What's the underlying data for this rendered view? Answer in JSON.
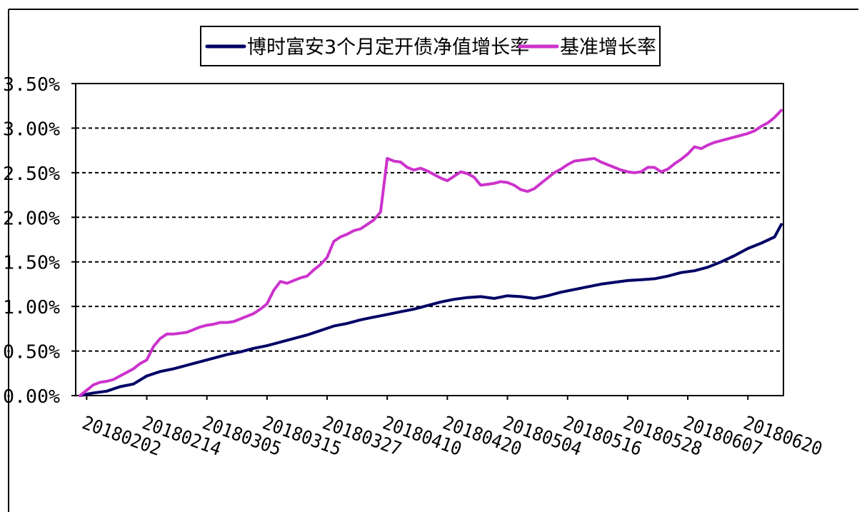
{
  "chart_data": {
    "type": "line",
    "title": "",
    "xlabel": "",
    "ylabel": "",
    "ylim": [
      0,
      0.035
    ],
    "y_ticks": [
      "0.00%",
      "0.50%",
      "1.00%",
      "1.50%",
      "2.00%",
      "2.50%",
      "3.00%",
      "3.50%"
    ],
    "y_tick_values": [
      0,
      0.005,
      0.01,
      0.015,
      0.02,
      0.025,
      0.03,
      0.035
    ],
    "x_tick_labels": [
      "20180202",
      "20180214",
      "20180305",
      "20180315",
      "20180327",
      "20180410",
      "20180420",
      "20180504",
      "20180516",
      "20180528",
      "20180607",
      "20180620"
    ],
    "x_tick_positions": [
      1,
      10,
      19,
      28,
      37,
      46,
      55,
      64,
      73,
      82,
      91,
      100
    ],
    "x_count": 106,
    "grid": "horizontal-dashed",
    "legend_position": "top",
    "series": [
      {
        "name": "博时富安3个月定开债净值增长率",
        "color": "#000066",
        "x": [
          0,
          2,
          4,
          6,
          8,
          10,
          12,
          14,
          16,
          18,
          20,
          22,
          24,
          26,
          28,
          30,
          32,
          34,
          36,
          38,
          40,
          42,
          44,
          46,
          48,
          50,
          52,
          54,
          56,
          58,
          60,
          62,
          64,
          66,
          68,
          70,
          72,
          74,
          76,
          78,
          80,
          82,
          84,
          86,
          88,
          90,
          92,
          94,
          96,
          98,
          100,
          102,
          104,
          105
        ],
        "values": [
          0.0,
          0.0003,
          0.0005,
          0.001,
          0.0013,
          0.0022,
          0.0027,
          0.003,
          0.0034,
          0.0038,
          0.0042,
          0.0046,
          0.0049,
          0.0053,
          0.0056,
          0.006,
          0.0064,
          0.0068,
          0.0073,
          0.0078,
          0.0081,
          0.0085,
          0.0088,
          0.0091,
          0.0094,
          0.0097,
          0.0101,
          0.0105,
          0.0108,
          0.011,
          0.0111,
          0.0109,
          0.0112,
          0.0111,
          0.0109,
          0.0112,
          0.0116,
          0.0119,
          0.0122,
          0.0125,
          0.0127,
          0.0129,
          0.013,
          0.0131,
          0.0134,
          0.0138,
          0.014,
          0.0144,
          0.015,
          0.0157,
          0.0165,
          0.0171,
          0.0178,
          0.0192
        ]
      },
      {
        "name": "基准增长率",
        "color": "#cc33cc",
        "x": [
          0,
          1,
          2,
          3,
          4,
          5,
          6,
          7,
          8,
          9,
          10,
          11,
          12,
          13,
          14,
          15,
          16,
          17,
          18,
          19,
          20,
          21,
          22,
          23,
          24,
          25,
          26,
          27,
          28,
          29,
          30,
          31,
          32,
          33,
          34,
          35,
          36,
          37,
          38,
          39,
          40,
          41,
          42,
          43,
          44,
          45,
          46,
          47,
          48,
          49,
          50,
          51,
          52,
          53,
          54,
          55,
          56,
          57,
          58,
          59,
          60,
          61,
          62,
          63,
          64,
          65,
          66,
          67,
          68,
          69,
          70,
          71,
          72,
          73,
          74,
          75,
          76,
          77,
          78,
          79,
          80,
          81,
          82,
          83,
          84,
          85,
          86,
          87,
          88,
          89,
          90,
          91,
          92,
          93,
          94,
          95,
          96,
          97,
          98,
          99,
          100,
          101,
          102,
          103,
          104,
          105
        ],
        "values": [
          0.0,
          0.0006,
          0.0012,
          0.0015,
          0.0016,
          0.0018,
          0.0022,
          0.0026,
          0.003,
          0.0036,
          0.004,
          0.0055,
          0.0064,
          0.0069,
          0.0069,
          0.007,
          0.0071,
          0.0074,
          0.0077,
          0.0079,
          0.008,
          0.0082,
          0.0082,
          0.0083,
          0.0086,
          0.0089,
          0.0092,
          0.0097,
          0.0103,
          0.0118,
          0.0128,
          0.0126,
          0.0129,
          0.0132,
          0.0134,
          0.0141,
          0.0147,
          0.0155,
          0.0173,
          0.0178,
          0.0181,
          0.0185,
          0.0187,
          0.0192,
          0.0197,
          0.0206,
          0.0266,
          0.0263,
          0.0262,
          0.0256,
          0.0253,
          0.0255,
          0.0252,
          0.0248,
          0.0244,
          0.0241,
          0.0246,
          0.0251,
          0.0249,
          0.0245,
          0.0236,
          0.0237,
          0.0238,
          0.024,
          0.0239,
          0.0236,
          0.0231,
          0.0229,
          0.0232,
          0.0238,
          0.0244,
          0.025,
          0.0254,
          0.0259,
          0.0263,
          0.0264,
          0.0265,
          0.0266,
          0.0262,
          0.0259,
          0.0256,
          0.0253,
          0.0251,
          0.025,
          0.0251,
          0.0256,
          0.0256,
          0.0251,
          0.0254,
          0.026,
          0.0265,
          0.0271,
          0.0279,
          0.0277,
          0.0281,
          0.0284,
          0.0286,
          0.0288,
          0.029,
          0.0292,
          0.0294,
          0.0297,
          0.0302,
          0.0306,
          0.0312,
          0.032
        ]
      }
    ]
  }
}
